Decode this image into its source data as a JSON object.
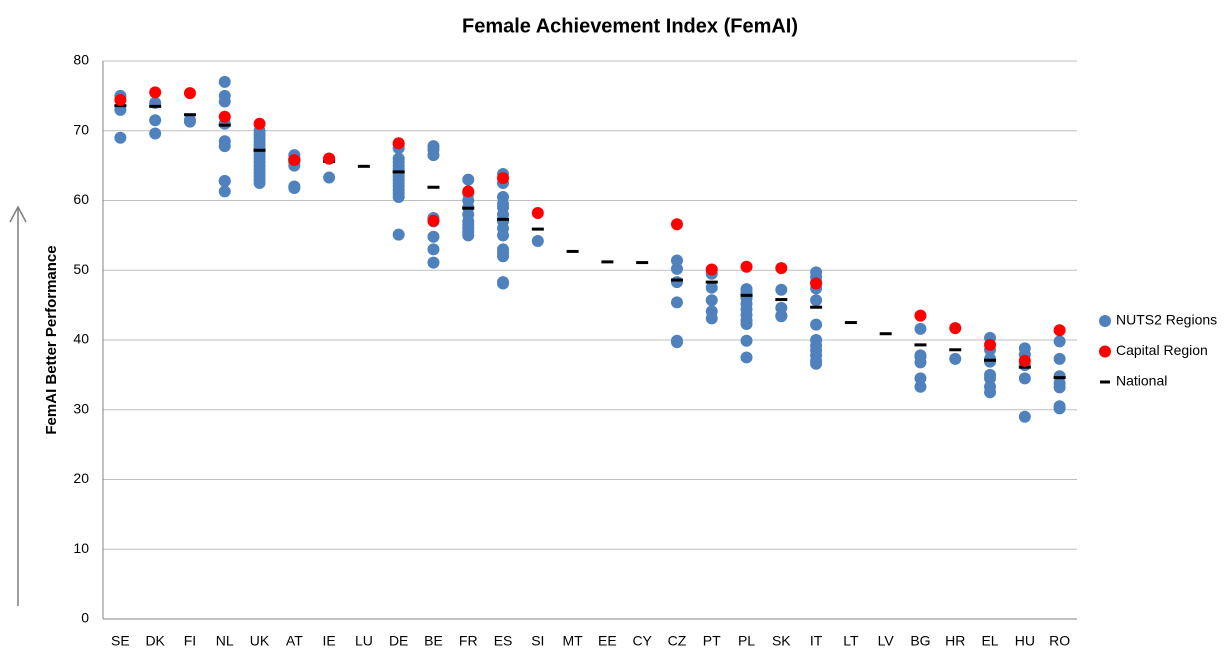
{
  "chart_data": {
    "type": "category-dot",
    "title": "Female Achievement Index (FemAI)",
    "y_label": "FemAI Better Performance",
    "categories": [
      "SE",
      "DK",
      "FI",
      "NL",
      "UK",
      "AT",
      "IE",
      "LU",
      "DE",
      "BE",
      "FR",
      "ES",
      "SI",
      "MT",
      "EE",
      "CY",
      "CZ",
      "PT",
      "PL",
      "SK",
      "IT",
      "LT",
      "LV",
      "BG",
      "HR",
      "EL",
      "HU",
      "RO"
    ],
    "ylim": [
      0,
      80
    ],
    "yticks": [
      0,
      10,
      20,
      30,
      40,
      50,
      60,
      70,
      80
    ],
    "grid": true,
    "legend": "right",
    "series": [
      {
        "name": "NUTS2 Regions",
        "color": "#4f81bd",
        "marker": "circle",
        "values": [
          [
            75,
            73,
            69
          ],
          [
            74,
            71.5,
            69.6
          ],
          [
            71.5,
            71.3
          ],
          [
            77,
            75,
            74.2,
            71,
            68.5,
            67.8,
            62.8,
            62.8,
            61.3
          ],
          [
            70,
            69.5,
            69,
            68.5,
            68,
            67.5,
            67,
            66.5,
            66,
            65.5,
            65,
            64.5,
            64,
            63.5,
            63,
            62.5
          ],
          [
            66.5,
            66,
            65.5,
            65,
            62,
            61.8
          ],
          [
            66,
            63.3
          ],
          [],
          [
            68,
            67.5,
            66,
            65.5,
            65,
            64.5,
            64,
            63.5,
            63,
            62.5,
            62,
            61.5,
            61,
            60.5,
            55.1
          ],
          [
            67.8,
            67.3,
            66.5,
            57.5,
            57,
            54.8,
            53,
            51.1
          ],
          [
            63,
            61,
            60,
            59,
            58,
            57,
            56.5,
            56,
            55.5,
            55
          ],
          [
            63.8,
            62.5,
            60.5,
            59.5,
            59,
            58,
            57,
            56,
            55,
            53,
            52.5,
            52,
            48.3,
            48.1
          ],
          [
            54.2
          ],
          [],
          [],
          [],
          [
            51.4,
            50.2,
            48.3,
            45.4,
            39.9,
            39.7
          ],
          [
            49.5,
            47.5,
            45.7,
            44.1,
            43.1
          ],
          [
            47.3,
            46.8,
            46,
            45.2,
            44.4,
            43.6,
            42.8,
            42.3,
            39.9,
            37.5
          ],
          [
            47.2,
            44.6,
            43.5,
            43.4
          ],
          [
            49.7,
            49,
            48.3,
            47.4,
            45.7,
            42.2,
            40,
            39.2,
            38.5,
            37.8,
            37,
            36.6
          ],
          [],
          [],
          [
            41.6,
            37.8,
            37.6,
            36.8,
            34.5,
            33.3
          ],
          [
            37.3
          ],
          [
            40.3,
            38.6,
            37.3,
            36.9,
            35,
            34.5,
            33.3,
            32.5
          ],
          [
            38.8,
            37.9,
            36.4,
            34.5,
            29
          ],
          [
            39.8,
            37.3,
            34.8,
            33.8,
            33.2,
            30.5,
            30.2
          ]
        ]
      },
      {
        "name": "National",
        "color": "#000000",
        "marker": "dash",
        "values": [
          73.6,
          73.5,
          72.3,
          70.8,
          67.2,
          65.8,
          65.6,
          64.9,
          64.1,
          61.9,
          58.9,
          57.3,
          55.9,
          52.7,
          51.2,
          51.1,
          48.6,
          48.3,
          46.4,
          45.8,
          44.7,
          42.5,
          40.9,
          39.3,
          38.6,
          37.1,
          36.1,
          34.6
        ]
      },
      {
        "name": "Capital Region",
        "color": "#ff0000",
        "marker": "circle",
        "values": [
          74.4,
          75.5,
          75.4,
          72,
          71,
          65.8,
          66,
          null,
          68.2,
          57.1,
          61.3,
          63.2,
          58.2,
          null,
          null,
          null,
          56.6,
          50.1,
          50.5,
          50.3,
          48.1,
          null,
          null,
          43.5,
          41.7,
          39.3,
          37,
          41.4
        ]
      }
    ],
    "legend_order": [
      0,
      2,
      1
    ]
  }
}
